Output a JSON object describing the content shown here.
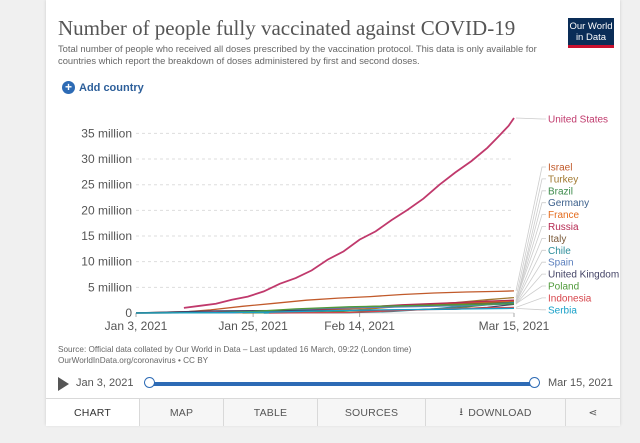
{
  "title": "Number of people fully vaccinated against COVID-19",
  "subtitle": "Total number of people who received all doses prescribed by the vaccination protocol. This data is only available for countries which report the breakdown of doses administered by first and second doses.",
  "logo": {
    "line1": "Our World",
    "line2": "in Data"
  },
  "add_country": "Add country",
  "source_line1": "Source: Official data collated by Our World in Data – Last updated 16 March, 09:22 (London time)",
  "source_line2": "OurWorldInData.org/coronavirus • CC BY",
  "timeline": {
    "start": "Jan 3, 2021",
    "end": "Mar 15, 2021"
  },
  "tabs": [
    "CHART",
    "MAP",
    "TABLE",
    "SOURCES",
    "DOWNLOAD"
  ],
  "colors": {
    "accent": "#2d6bb5",
    "logo_bg": "#0a2d57",
    "logo_bar": "#c8102e"
  },
  "chart_data": {
    "type": "line",
    "ylim": [
      0,
      38
    ],
    "y_unit": "million",
    "y_ticks": [
      "0",
      "5 million",
      "10 million",
      "15 million",
      "20 million",
      "25 million",
      "30 million",
      "35 million"
    ],
    "y_tick_values": [
      0,
      5,
      10,
      15,
      20,
      25,
      30,
      35
    ],
    "x_ticks": [
      "Jan 3, 2021",
      "Jan 25, 2021",
      "Feb 14, 2021",
      "Mar 15, 2021"
    ],
    "x_tick_days": [
      0,
      22,
      42,
      71
    ],
    "x_range_days": [
      0,
      71
    ],
    "series": [
      {
        "name": "United States",
        "color": "#c0396c",
        "points": [
          [
            9,
            1.0
          ],
          [
            12,
            1.4
          ],
          [
            15,
            1.8
          ],
          [
            18,
            2.6
          ],
          [
            21,
            3.2
          ],
          [
            24,
            4.2
          ],
          [
            27,
            5.7
          ],
          [
            30,
            6.8
          ],
          [
            33,
            8.3
          ],
          [
            36,
            10.4
          ],
          [
            39,
            12.0
          ],
          [
            42,
            14.3
          ],
          [
            45,
            15.9
          ],
          [
            48,
            18.1
          ],
          [
            51,
            20.1
          ],
          [
            54,
            22.3
          ],
          [
            57,
            25.0
          ],
          [
            60,
            27.4
          ],
          [
            63,
            29.6
          ],
          [
            66,
            32.2
          ],
          [
            68,
            34.3
          ],
          [
            70,
            36.5
          ],
          [
            71,
            38.0
          ]
        ]
      },
      {
        "name": "Israel",
        "color": "#c15a2b",
        "points": [
          [
            0,
            0
          ],
          [
            10,
            0.3
          ],
          [
            14,
            0.6
          ],
          [
            20,
            1.3
          ],
          [
            26,
            1.9
          ],
          [
            32,
            2.5
          ],
          [
            38,
            2.9
          ],
          [
            44,
            3.2
          ],
          [
            50,
            3.6
          ],
          [
            56,
            3.9
          ],
          [
            62,
            4.1
          ],
          [
            68,
            4.2
          ],
          [
            71,
            4.3
          ]
        ]
      },
      {
        "name": "Turkey",
        "color": "#a07830",
        "points": [
          [
            24,
            0
          ],
          [
            36,
            0.2
          ],
          [
            44,
            0.8
          ],
          [
            52,
            1.5
          ],
          [
            60,
            2.0
          ],
          [
            66,
            2.6
          ],
          [
            71,
            3.0
          ]
        ]
      },
      {
        "name": "Brazil",
        "color": "#3d8b4b",
        "points": [
          [
            20,
            0
          ],
          [
            30,
            0.1
          ],
          [
            40,
            0.2
          ],
          [
            50,
            0.5
          ],
          [
            60,
            1.0
          ],
          [
            66,
            1.6
          ],
          [
            71,
            2.0
          ]
        ]
      },
      {
        "name": "Germany",
        "color": "#3b5f8b",
        "points": [
          [
            0,
            0
          ],
          [
            20,
            0.1
          ],
          [
            30,
            0.5
          ],
          [
            40,
            1.0
          ],
          [
            50,
            1.4
          ],
          [
            60,
            1.8
          ],
          [
            66,
            2.1
          ],
          [
            71,
            2.3
          ]
        ]
      },
      {
        "name": "France",
        "color": "#e46c1e",
        "points": [
          [
            0,
            0
          ],
          [
            20,
            0.05
          ],
          [
            30,
            0.3
          ],
          [
            40,
            0.8
          ],
          [
            50,
            1.3
          ],
          [
            60,
            1.8
          ],
          [
            66,
            2.1
          ],
          [
            71,
            2.3
          ]
        ]
      },
      {
        "name": "Russia",
        "color": "#b52a52",
        "points": [
          [
            0,
            0
          ],
          [
            20,
            0.2
          ],
          [
            30,
            0.5
          ],
          [
            40,
            1.0
          ],
          [
            50,
            1.6
          ],
          [
            60,
            2.0
          ],
          [
            66,
            2.3
          ],
          [
            71,
            2.5
          ]
        ]
      },
      {
        "name": "Italy",
        "color": "#7a5a3a",
        "points": [
          [
            0,
            0
          ],
          [
            18,
            0.05
          ],
          [
            25,
            0.3
          ],
          [
            35,
            0.9
          ],
          [
            45,
            1.3
          ],
          [
            55,
            1.5
          ],
          [
            63,
            1.8
          ],
          [
            71,
            2.1
          ]
        ]
      },
      {
        "name": "Chile",
        "color": "#2c8d9a",
        "points": [
          [
            24,
            0
          ],
          [
            40,
            0.05
          ],
          [
            48,
            0.3
          ],
          [
            56,
            0.8
          ],
          [
            64,
            1.6
          ],
          [
            71,
            2.0
          ]
        ]
      },
      {
        "name": "Spain",
        "color": "#5b7fbd",
        "points": [
          [
            0,
            0
          ],
          [
            18,
            0.05
          ],
          [
            25,
            0.4
          ],
          [
            35,
            0.9
          ],
          [
            45,
            1.1
          ],
          [
            55,
            1.3
          ],
          [
            63,
            1.5
          ],
          [
            71,
            1.8
          ]
        ]
      },
      {
        "name": "United Kingdom",
        "color": "#444466",
        "points": [
          [
            0,
            0.02
          ],
          [
            15,
            0.4
          ],
          [
            30,
            0.48
          ],
          [
            45,
            0.55
          ],
          [
            60,
            0.75
          ],
          [
            66,
            1.1
          ],
          [
            71,
            1.7
          ]
        ]
      },
      {
        "name": "Poland",
        "color": "#4f9a3a",
        "points": [
          [
            0,
            0
          ],
          [
            15,
            0.05
          ],
          [
            22,
            0.3
          ],
          [
            30,
            0.8
          ],
          [
            40,
            1.2
          ],
          [
            50,
            1.4
          ],
          [
            60,
            1.6
          ],
          [
            71,
            1.8
          ]
        ]
      },
      {
        "name": "Indonesia",
        "color": "#d6454b",
        "points": [
          [
            25,
            0
          ],
          [
            40,
            0.1
          ],
          [
            50,
            0.5
          ],
          [
            60,
            0.9
          ],
          [
            66,
            1.0
          ],
          [
            71,
            1.1
          ]
        ]
      },
      {
        "name": "Serbia",
        "color": "#18a0c8",
        "points": [
          [
            0,
            0
          ],
          [
            15,
            0.05
          ],
          [
            25,
            0.15
          ],
          [
            35,
            0.4
          ],
          [
            45,
            0.6
          ],
          [
            55,
            0.7
          ],
          [
            71,
            0.9
          ]
        ]
      }
    ]
  }
}
